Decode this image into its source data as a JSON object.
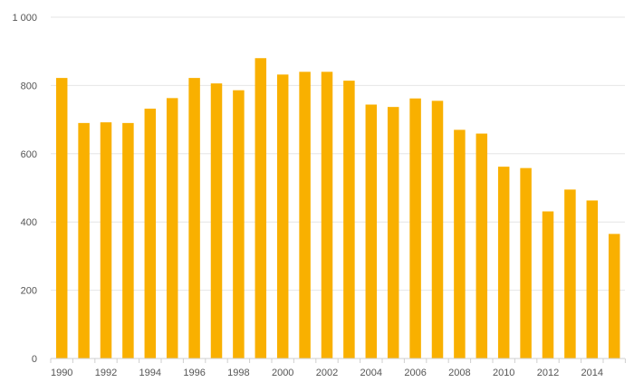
{
  "chart_data": {
    "type": "bar",
    "title": "",
    "xlabel": "",
    "ylabel": "",
    "categories": [
      "1990",
      "1991",
      "1992",
      "1993",
      "1994",
      "1995",
      "1996",
      "1997",
      "1998",
      "1999",
      "2000",
      "2001",
      "2002",
      "2003",
      "2004",
      "2005",
      "2006",
      "2007",
      "2008",
      "2009",
      "2010",
      "2011",
      "2012",
      "2013",
      "2014",
      "2015"
    ],
    "values": [
      822,
      690,
      692,
      690,
      732,
      763,
      822,
      806,
      786,
      880,
      832,
      840,
      840,
      814,
      744,
      737,
      762,
      755,
      670,
      659,
      562,
      558,
      431,
      495,
      463,
      365
    ],
    "ylim": [
      0,
      1000
    ],
    "y_ticks": [
      0,
      200,
      400,
      600,
      800,
      1000
    ],
    "y_tick_labels": [
      "0",
      "200",
      "400",
      "600",
      "800",
      "1 000"
    ],
    "x_tick_labels": [
      "1990",
      "1992",
      "1994",
      "1996",
      "1998",
      "2000",
      "2002",
      "2004",
      "2006",
      "2008",
      "2010",
      "2012",
      "2014"
    ],
    "grid": true,
    "legend": "none",
    "bar_color": "#f9b000"
  }
}
